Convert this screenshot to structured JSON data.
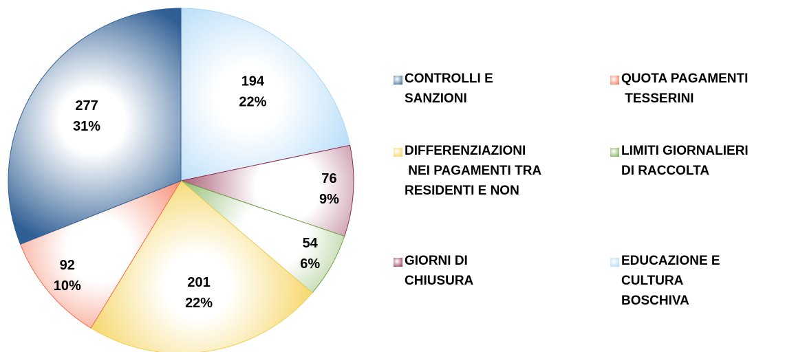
{
  "chart_data": {
    "type": "pie",
    "categories": [
      "EDUCAZIONE E\nCULTURA\nBOSCHIVA",
      "GIORNI DI\nCHIUSURA",
      "LIMITI GIORNALIERI\nDI RACCOLTA",
      "DIFFERENZIAZIONI\n NEI PAGAMENTI TRA\nRESIDENTI E NON",
      "QUOTA PAGAMENTI\n TESSERINI",
      "CONTROLLI E\nSANZIONI"
    ],
    "values": [
      194,
      76,
      54,
      201,
      92,
      277
    ],
    "percent_labels": [
      "22%",
      "9%",
      "6%",
      "22%",
      "10%",
      "31%"
    ],
    "colors": [
      "#a9d6f7",
      "#8e2a4a",
      "#6fa845",
      "#f4d050",
      "#f36a4a",
      "#2f5f94"
    ]
  }
}
